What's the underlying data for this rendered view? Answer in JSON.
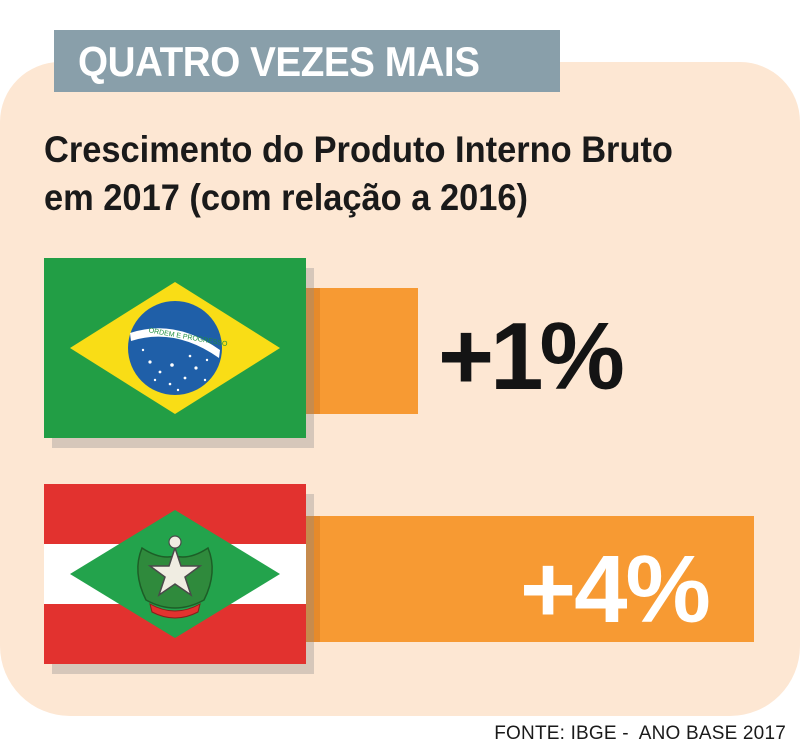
{
  "header": {
    "tag": "QUATRO VEZES MAIS"
  },
  "chart_data": {
    "type": "bar",
    "title": "Crescimento do Produto Interno Bruto em 2017 (com relação a 2016)",
    "categories": [
      "Brasil",
      "Santa Catarina"
    ],
    "values": [
      1,
      4
    ],
    "value_labels": [
      "+1%",
      "+4%"
    ],
    "unit": "%",
    "flag_texts": [
      "ORDEM E PROGRESSO"
    ],
    "bar_color": "#f79a33",
    "bar_shadow_color": "#e68a2b"
  },
  "source": "FONTE: IBGE -  ANO BASE 2017",
  "colors": {
    "panel": "#fde7d3",
    "header_tag": "#899faa",
    "brazil_green": "#229e45",
    "brazil_yellow": "#f9dd16",
    "brazil_blue": "#2b49a3",
    "sc_red": "#e2322f",
    "sc_green": "#23a34c"
  }
}
